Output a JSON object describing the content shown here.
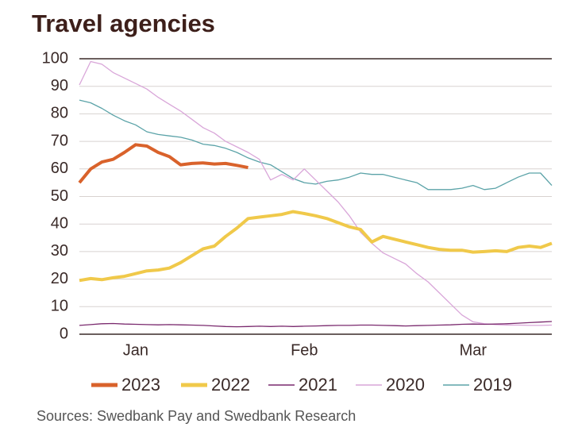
{
  "chart_data": {
    "type": "line",
    "title": "Travel agencies",
    "source": "Sources: Swedbank Pay and Swedbank Research",
    "categories": [
      null,
      null,
      null,
      null,
      null,
      "Jan",
      null,
      null,
      null,
      null,
      null,
      null,
      null,
      null,
      null,
      null,
      null,
      null,
      null,
      null,
      "Feb",
      null,
      null,
      null,
      null,
      null,
      null,
      null,
      null,
      null,
      null,
      null,
      null,
      null,
      null,
      "Mar",
      null,
      null,
      null,
      null,
      null,
      null,
      null
    ],
    "ylim": [
      0,
      100
    ],
    "yticks": [
      0,
      10,
      20,
      30,
      40,
      50,
      60,
      70,
      80,
      90,
      100
    ],
    "grid": true,
    "legend": "bottom",
    "series": [
      {
        "name": "2023",
        "color": "#d9622b",
        "values": [
          55,
          60,
          62.5,
          63.5,
          66,
          68.8,
          68.3,
          66,
          64.5,
          61.5,
          62,
          62.2,
          61.8,
          62,
          61.3,
          60.5,
          null,
          null,
          null,
          null,
          null,
          null,
          null,
          null,
          null,
          null,
          null,
          null,
          null,
          null,
          null,
          null,
          null,
          null,
          null,
          null,
          null,
          null,
          null,
          null,
          null,
          null,
          null
        ]
      },
      {
        "name": "2022",
        "color": "#f0c94a",
        "values": [
          19.5,
          20.2,
          19.8,
          20.5,
          21,
          22,
          23,
          23.3,
          24,
          26,
          28.5,
          31,
          32,
          35.5,
          38.5,
          42,
          42.5,
          43,
          43.5,
          44.5,
          43.8,
          43,
          42,
          40.5,
          39,
          38,
          33.5,
          35.5,
          34.5,
          33.5,
          32.5,
          31.5,
          30.8,
          30.5,
          30.5,
          29.8,
          30,
          30.3,
          30,
          31.5,
          32,
          31.5,
          33
        ]
      },
      {
        "name": "2021",
        "color": "#7a2a6e",
        "values": [
          3.2,
          3.5,
          3.8,
          3.9,
          3.7,
          3.6,
          3.5,
          3.4,
          3.5,
          3.4,
          3.3,
          3.2,
          3,
          2.8,
          2.7,
          2.8,
          2.9,
          2.8,
          2.9,
          2.8,
          2.9,
          3,
          3.1,
          3.2,
          3.2,
          3.3,
          3.3,
          3.2,
          3.1,
          3,
          3.1,
          3.2,
          3.3,
          3.4,
          3.6,
          3.7,
          3.6,
          3.7,
          3.8,
          4,
          4.2,
          4.4,
          4.6
        ]
      },
      {
        "name": "2020",
        "color": "#d9a6d9",
        "values": [
          90.5,
          99,
          98,
          95,
          93,
          91,
          89,
          86,
          83.5,
          81,
          78,
          75,
          73,
          70,
          68,
          66,
          63.5,
          56,
          58,
          56,
          60,
          56,
          52,
          48,
          43,
          37,
          33,
          29.5,
          27.5,
          25.5,
          22,
          19,
          15,
          11,
          7,
          4.5,
          3.8,
          3.5,
          3.3,
          3.3,
          3.2,
          3.2,
          3.3
        ]
      },
      {
        "name": "2019",
        "color": "#5ba3a8",
        "values": [
          85,
          84,
          82,
          79.5,
          77.5,
          76,
          73.5,
          72.5,
          72,
          71.5,
          70.5,
          69,
          68.5,
          67.5,
          66,
          64,
          62.5,
          61.5,
          59,
          56.5,
          55,
          54.5,
          55.5,
          56,
          57,
          58.5,
          58,
          58,
          57,
          56,
          55,
          52.5,
          52.5,
          52.5,
          53,
          54,
          52.5,
          53,
          55,
          57,
          58.5,
          58.5,
          54
        ]
      }
    ]
  }
}
